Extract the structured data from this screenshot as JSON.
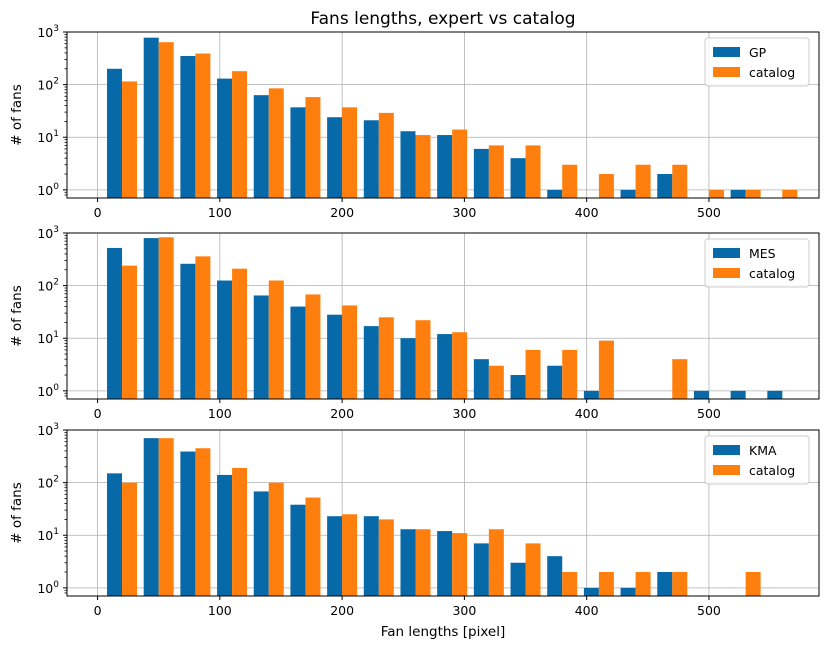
{
  "chart_data": [
    {
      "type": "bar",
      "title": "Fans lengths, expert vs catalog",
      "xlabel": "",
      "ylabel": "# of fans",
      "yscale": "log",
      "ylim": [
        0.7,
        1000
      ],
      "xlim": [
        -25,
        590
      ],
      "xticks": [
        0,
        100,
        200,
        300,
        400,
        500
      ],
      "yticks": [
        1,
        10,
        100,
        1000
      ],
      "ytick_labels": [
        [
          "10",
          "0"
        ],
        [
          "10",
          "1"
        ],
        [
          "10",
          "2"
        ],
        [
          "10",
          "3"
        ]
      ],
      "grid": true,
      "legend": "top-right",
      "bin_centers": [
        20,
        50,
        80,
        110,
        140,
        170,
        200,
        230,
        260,
        290,
        320,
        350,
        380,
        410,
        440,
        470,
        500,
        530,
        560
      ],
      "series": [
        {
          "name": "GP",
          "color": "#0769a7",
          "values": [
            200,
            780,
            350,
            130,
            63,
            37,
            24,
            21,
            13,
            11,
            6,
            4,
            1,
            null,
            1,
            2,
            null,
            1,
            null
          ]
        },
        {
          "name": "catalog",
          "color": "#ff7f0e",
          "values": [
            115,
            640,
            390,
            180,
            85,
            58,
            37,
            29,
            11,
            14,
            7,
            7,
            3,
            2,
            3,
            3,
            1,
            1,
            1
          ]
        }
      ]
    },
    {
      "type": "bar",
      "title": "",
      "xlabel": "",
      "ylabel": "# of fans",
      "yscale": "log",
      "ylim": [
        0.7,
        1000
      ],
      "xlim": [
        -25,
        590
      ],
      "xticks": [
        0,
        100,
        200,
        300,
        400,
        500
      ],
      "yticks": [
        1,
        10,
        100,
        1000
      ],
      "ytick_labels": [
        [
          "10",
          "0"
        ],
        [
          "10",
          "1"
        ],
        [
          "10",
          "2"
        ],
        [
          "10",
          "3"
        ]
      ],
      "grid": true,
      "legend": "top-right",
      "bin_centers": [
        20,
        50,
        80,
        110,
        140,
        170,
        200,
        230,
        260,
        290,
        320,
        350,
        380,
        410,
        440,
        470,
        500,
        530,
        560
      ],
      "series": [
        {
          "name": "MES",
          "color": "#0769a7",
          "values": [
            520,
            800,
            260,
            125,
            65,
            40,
            28,
            17,
            10,
            12,
            4,
            2,
            3,
            1,
            null,
            null,
            1,
            1,
            1
          ]
        },
        {
          "name": "catalog",
          "color": "#ff7f0e",
          "values": [
            240,
            830,
            360,
            210,
            125,
            68,
            42,
            25,
            22,
            13,
            3,
            6,
            6,
            9,
            null,
            4,
            null,
            null,
            null
          ]
        }
      ]
    },
    {
      "type": "bar",
      "title": "",
      "xlabel": "Fan lengths [pixel]",
      "ylabel": "# of fans",
      "yscale": "log",
      "ylim": [
        0.7,
        1000
      ],
      "xlim": [
        -25,
        590
      ],
      "xticks": [
        0,
        100,
        200,
        300,
        400,
        500
      ],
      "yticks": [
        1,
        10,
        100,
        1000
      ],
      "ytick_labels": [
        [
          "10",
          "0"
        ],
        [
          "10",
          "1"
        ],
        [
          "10",
          "2"
        ],
        [
          "10",
          "3"
        ]
      ],
      "grid": true,
      "legend": "top-right",
      "bin_centers": [
        20,
        50,
        80,
        110,
        140,
        170,
        200,
        230,
        260,
        290,
        320,
        350,
        380,
        410,
        440,
        470,
        500,
        530,
        560
      ],
      "series": [
        {
          "name": "KMA",
          "color": "#0769a7",
          "values": [
            150,
            700,
            390,
            140,
            68,
            38,
            23,
            23,
            13,
            12,
            7,
            3,
            4,
            1,
            1,
            2,
            null,
            null,
            null
          ]
        },
        {
          "name": "catalog",
          "color": "#ff7f0e",
          "values": [
            100,
            700,
            450,
            190,
            100,
            52,
            25,
            20,
            13,
            11,
            13,
            7,
            2,
            2,
            2,
            2,
            null,
            2,
            null
          ]
        }
      ]
    }
  ]
}
